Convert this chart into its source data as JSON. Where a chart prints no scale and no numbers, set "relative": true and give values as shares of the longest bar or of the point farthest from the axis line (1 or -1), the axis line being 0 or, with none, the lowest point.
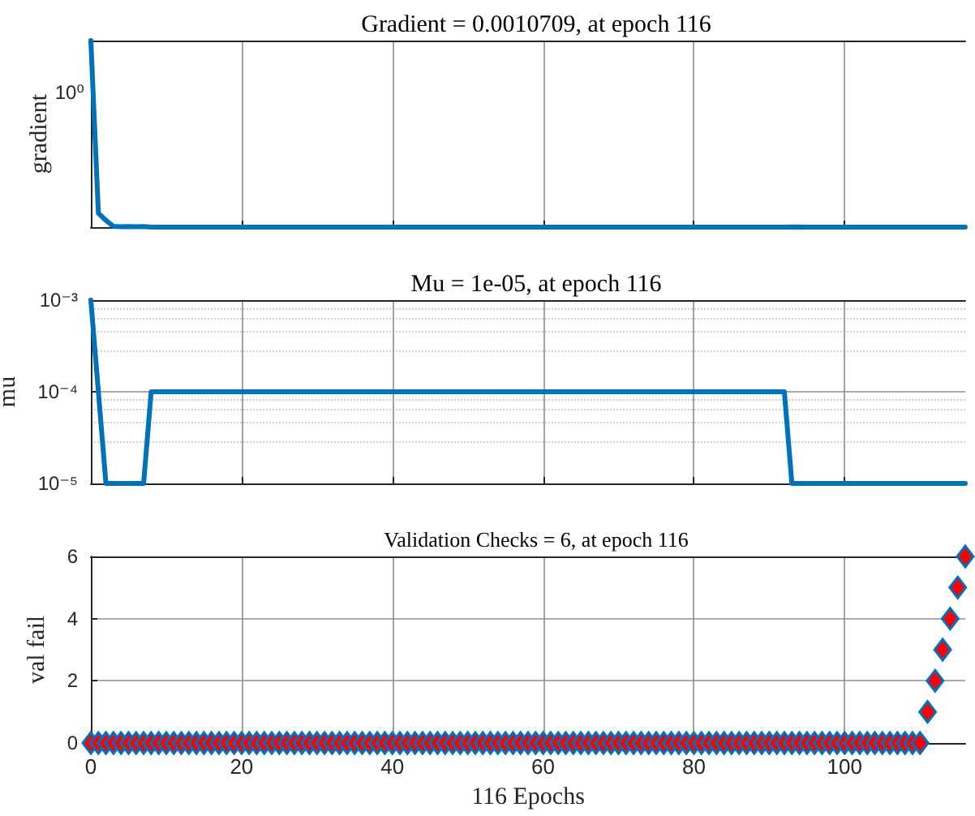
{
  "chart_data": [
    {
      "type": "line",
      "title": "Gradient = 0.0010709, at epoch 116",
      "ylabel": "gradient",
      "grid": "x",
      "relative": true,
      "annotations": [
        "10⁰"
      ],
      "marker": "none",
      "line_style": "solid",
      "tick_labels": "y",
      "x": [
        0,
        1,
        2,
        3,
        4,
        5,
        6,
        7,
        8,
        9,
        11,
        16,
        20,
        27,
        30,
        40,
        52,
        60,
        70,
        81,
        92,
        93,
        95,
        97,
        99,
        101,
        104,
        108,
        110,
        113,
        115,
        116
      ],
      "series": [
        {
          "color": "#0072bd",
          "values": [
            1,
            0.075,
            0.036,
            0.0042,
            0.0025,
            0.0037,
            0.002,
            0.0032,
            0,
            0.0001,
            0.0001,
            0.0001,
            0.0001,
            0.0001,
            0.0001,
            0.0001,
            0,
            0,
            0,
            0,
            0,
            0.0014,
            0.0005,
            0.0001,
            0.0002,
            0.0003,
            0.0003,
            0.0002,
            0.0001,
            0,
            0,
            0
          ]
        }
      ],
      "xlim": [
        0,
        116
      ],
      "xticks": [
        0,
        20,
        40,
        60,
        80,
        100
      ]
    },
    {
      "type": "line",
      "title": "Mu = 1e-05, at epoch 116",
      "ylabel": "mu",
      "log": "y",
      "grid": true,
      "marker": "none",
      "line_style": "solid",
      "tick_labels": "y",
      "x": [
        0,
        1,
        2,
        7,
        8,
        92,
        93,
        116
      ],
      "series": [
        {
          "color": "#0072bd",
          "values": [
            0.001,
            0.0001,
            1e-05,
            1e-05,
            0.0001,
            0.0001,
            1e-05,
            1e-05
          ]
        }
      ],
      "xlim": [
        0,
        116
      ],
      "xticks": [
        0,
        20,
        40,
        60,
        80,
        100
      ],
      "ylim": [
        1e-05,
        0.001
      ],
      "yticks": [
        {
          "value": 1e-05,
          "label": "10⁻⁵"
        },
        {
          "value": 0.0001,
          "label": "10⁻⁴"
        },
        {
          "value": 0.001,
          "label": "10⁻³"
        }
      ]
    },
    {
      "type": "scatter",
      "title": "Validation Checks = 6, at epoch 116",
      "xlabel": "116 Epochs",
      "ylabel": "val fail",
      "grid": true,
      "marker": "diamond",
      "x": [
        0,
        1,
        2,
        3,
        4,
        5,
        6,
        7,
        8,
        9,
        10,
        11,
        12,
        13,
        14,
        15,
        16,
        17,
        18,
        19,
        20,
        21,
        22,
        23,
        24,
        25,
        26,
        27,
        28,
        29,
        30,
        31,
        32,
        33,
        34,
        35,
        36,
        37,
        38,
        39,
        40,
        41,
        42,
        43,
        44,
        45,
        46,
        47,
        48,
        49,
        50,
        51,
        52,
        53,
        54,
        55,
        56,
        57,
        58,
        59,
        60,
        61,
        62,
        63,
        64,
        65,
        66,
        67,
        68,
        69,
        70,
        71,
        72,
        73,
        74,
        75,
        76,
        77,
        78,
        79,
        80,
        81,
        82,
        83,
        84,
        85,
        86,
        87,
        88,
        89,
        90,
        91,
        92,
        93,
        94,
        95,
        96,
        97,
        98,
        99,
        100,
        101,
        102,
        103,
        104,
        105,
        106,
        107,
        108,
        109,
        110,
        111,
        112,
        113,
        114,
        115,
        116
      ],
      "series": [
        {
          "color": "#ff0000",
          "values": [
            0,
            0,
            0,
            0,
            0,
            0,
            0,
            0,
            0,
            0,
            0,
            0,
            0,
            0,
            0,
            0,
            0,
            0,
            0,
            0,
            0,
            0,
            0,
            0,
            0,
            0,
            0,
            0,
            0,
            0,
            0,
            0,
            0,
            0,
            0,
            0,
            0,
            0,
            0,
            0,
            0,
            0,
            0,
            0,
            0,
            0,
            0,
            0,
            0,
            0,
            0,
            0,
            0,
            0,
            0,
            0,
            0,
            0,
            0,
            0,
            0,
            0,
            0,
            0,
            0,
            0,
            0,
            0,
            0,
            0,
            0,
            0,
            0,
            0,
            0,
            0,
            0,
            0,
            0,
            0,
            0,
            0,
            0,
            0,
            0,
            0,
            0,
            0,
            0,
            0,
            0,
            0,
            0,
            0,
            0,
            0,
            0,
            0,
            0,
            0,
            0,
            0,
            0,
            0,
            0,
            0,
            0,
            0,
            0,
            0,
            0,
            1,
            2,
            3,
            4,
            5,
            6
          ]
        }
      ],
      "xlim": [
        0,
        116
      ],
      "xticks": [
        0,
        20,
        40,
        60,
        80,
        100
      ],
      "ylim": [
        0,
        6
      ],
      "yticks": [
        0,
        2,
        4,
        6
      ]
    }
  ]
}
